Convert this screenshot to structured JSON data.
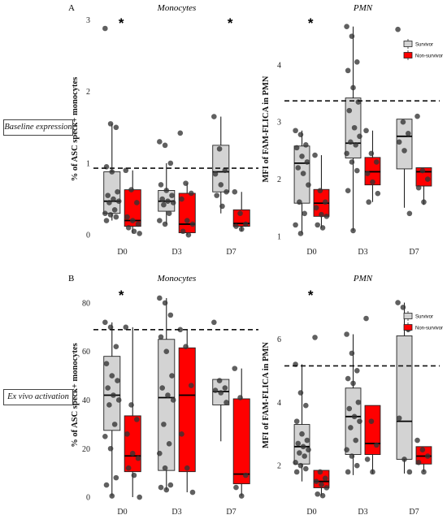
{
  "row_labels": {
    "baseline": "Baseline expression",
    "exvivo": "Ex vivo activation"
  },
  "legend": {
    "survivor": "Survivor",
    "nonsurvivor": "Non-survivor"
  },
  "colors": {
    "survivor": "#d3d3d3",
    "nonsurvivor": "#ff0000",
    "point": "#333333",
    "stroke": "#222222"
  },
  "significance_marker": "*",
  "chart_data": [
    {
      "panel": "A",
      "title": "Monocytes",
      "type": "box",
      "ylabel": "% of ASC speck+ monocytes",
      "xlabel": "",
      "categories": [
        "D0",
        "D3",
        "D7"
      ],
      "ylim": [
        -0.1,
        3.05
      ],
      "yticks": [
        0,
        1,
        2,
        3
      ],
      "ref_line": 0.93,
      "significance": [
        "D0",
        "D7"
      ],
      "legend": false,
      "groups": [
        {
          "cat": "D0",
          "series": "Survivor",
          "q1": 0.3,
          "median": 0.47,
          "q3": 0.88,
          "min": 0.2,
          "max": 1.55,
          "points": [
            2.88,
            1.55,
            1.5,
            0.95,
            0.88,
            0.6,
            0.55,
            0.5,
            0.47,
            0.45,
            0.35,
            0.3,
            0.28,
            0.25,
            0.2
          ]
        },
        {
          "cat": "D0",
          "series": "Non-survivor",
          "q1": 0.12,
          "median": 0.2,
          "q3": 0.63,
          "min": 0.02,
          "max": 0.9,
          "points": [
            0.9,
            0.63,
            0.45,
            0.25,
            0.2,
            0.15,
            0.1,
            0.05,
            0.02
          ]
        },
        {
          "cat": "D3",
          "series": "Survivor",
          "q1": 0.33,
          "median": 0.47,
          "q3": 0.62,
          "min": 0.15,
          "max": 1.0,
          "points": [
            1.3,
            1.25,
            1.0,
            0.7,
            0.62,
            0.55,
            0.5,
            0.47,
            0.45,
            0.42,
            0.3,
            0.2,
            0.15
          ]
        },
        {
          "cat": "D3",
          "series": "Non-survivor",
          "q1": 0.03,
          "median": 0.15,
          "q3": 0.58,
          "min": 0.0,
          "max": 0.72,
          "points": [
            1.42,
            0.72,
            0.58,
            0.5,
            0.2,
            0.15,
            0.05,
            0.0
          ]
        },
        {
          "cat": "D7",
          "series": "Survivor",
          "q1": 0.6,
          "median": 0.88,
          "q3": 1.25,
          "min": 0.3,
          "max": 1.65,
          "points": [
            1.65,
            1.2,
            0.9,
            0.85,
            0.7,
            0.6,
            0.55,
            0.4
          ]
        },
        {
          "cat": "D7",
          "series": "Non-survivor",
          "q1": 0.12,
          "median": 0.16,
          "q3": 0.35,
          "min": 0.05,
          "max": 0.6,
          "points": [
            0.6,
            0.3,
            0.15,
            0.12,
            0.08
          ]
        }
      ]
    },
    {
      "panel": "",
      "title": "PMN",
      "type": "box",
      "ylabel": "MFI of FAM-FLICA in PMN",
      "xlabel": "",
      "categories": [
        "D0",
        "D3",
        "D7"
      ],
      "ylim": [
        0.9,
        4.85
      ],
      "yticks": [
        1,
        2,
        3,
        4
      ],
      "ref_line": 3.37,
      "significance": [
        "D0"
      ],
      "legend": true,
      "groups": [
        {
          "cat": "D0",
          "series": "Survivor",
          "q1": 1.58,
          "median": 2.28,
          "q3": 2.58,
          "min": 1.05,
          "max": 2.85,
          "points": [
            2.85,
            2.78,
            2.6,
            2.55,
            2.4,
            2.3,
            2.2,
            2.1,
            1.9,
            1.6,
            1.4,
            1.2,
            1.05
          ]
        },
        {
          "cat": "D0",
          "series": "Non-survivor",
          "q1": 1.35,
          "median": 1.58,
          "q3": 1.82,
          "min": 1.15,
          "max": 2.42,
          "points": [
            2.42,
            1.8,
            1.6,
            1.5,
            1.38,
            1.35,
            1.2,
            1.15
          ]
        },
        {
          "cat": "D3",
          "series": "Survivor",
          "q1": 2.37,
          "median": 2.63,
          "q3": 3.42,
          "min": 1.1,
          "max": 4.67,
          "points": [
            4.67,
            4.5,
            4.05,
            3.9,
            3.6,
            3.35,
            3.2,
            2.9,
            2.75,
            2.65,
            2.6,
            2.45,
            2.3,
            2.15,
            1.8,
            1.1
          ]
        },
        {
          "cat": "D3",
          "series": "Non-survivor",
          "q1": 1.9,
          "median": 2.13,
          "q3": 2.38,
          "min": 1.6,
          "max": 2.85,
          "points": [
            2.85,
            2.45,
            2.3,
            2.1,
            1.95,
            1.75,
            1.6
          ]
        },
        {
          "cat": "D7",
          "series": "Survivor",
          "q1": 2.18,
          "median": 2.75,
          "q3": 3.05,
          "min": 1.5,
          "max": 3.05,
          "points": [
            4.62,
            3.0,
            2.8,
            2.65,
            2.5,
            1.4
          ]
        },
        {
          "cat": "D7",
          "series": "Non-survivor",
          "q1": 1.88,
          "median": 2.13,
          "q3": 2.2,
          "min": 1.55,
          "max": 2.2,
          "points": [
            3.1,
            2.15,
            2.0,
            1.85,
            1.6
          ]
        }
      ]
    },
    {
      "panel": "B",
      "title": "Monocytes",
      "type": "box",
      "ylabel": "% of ASC speck+ monocytes",
      "xlabel": "",
      "categories": [
        "D0",
        "D3",
        "D7"
      ],
      "ylim": [
        -2,
        86
      ],
      "yticks": [
        0,
        20,
        40,
        60,
        80
      ],
      "ref_line": 69,
      "significance": [
        "D0"
      ],
      "legend": false,
      "groups": [
        {
          "cat": "D0",
          "series": "Survivor",
          "q1": 27.5,
          "median": 42,
          "q3": 58,
          "min": 0.5,
          "max": 72,
          "points": [
            72,
            70,
            62,
            55,
            50,
            48,
            45,
            42,
            40,
            38,
            30,
            25,
            20,
            8,
            5,
            0.5
          ]
        },
        {
          "cat": "D0",
          "series": "Non-survivor",
          "q1": 10.5,
          "median": 17,
          "q3": 33.5,
          "min": 0,
          "max": 70,
          "points": [
            70,
            38,
            32,
            26,
            18,
            16,
            12,
            9,
            0
          ]
        },
        {
          "cat": "D3",
          "series": "Survivor",
          "q1": 11,
          "median": 41,
          "q3": 65,
          "min": 3,
          "max": 82,
          "points": [
            82,
            80,
            75,
            66,
            60,
            50,
            45,
            42,
            40,
            30,
            22,
            18,
            12,
            5,
            4,
            3
          ]
        },
        {
          "cat": "D3",
          "series": "Non-survivor",
          "q1": 10.5,
          "median": 42,
          "q3": 61.5,
          "min": 2,
          "max": 69,
          "points": [
            69,
            62,
            46,
            26,
            12,
            2
          ]
        },
        {
          "cat": "D7",
          "series": "Survivor",
          "q1": 38,
          "median": 43.5,
          "q3": 48.5,
          "min": 23,
          "max": 48.5,
          "points": [
            72,
            48,
            45,
            44,
            43,
            39
          ]
        },
        {
          "cat": "D7",
          "series": "Non-survivor",
          "q1": 5.5,
          "median": 9.5,
          "q3": 40.5,
          "min": 0.5,
          "max": 53,
          "points": [
            53,
            41,
            9,
            4,
            0.5
          ]
        }
      ]
    },
    {
      "panel": "",
      "title": "PMN",
      "type": "box",
      "ylabel": "MFI of FAM-FLICA in PMN",
      "xlabel": "",
      "categories": [
        "D0",
        "D3",
        "D7"
      ],
      "ylim": [
        0.85,
        7.6
      ],
      "yticks": [
        2,
        4,
        6
      ],
      "ref_line": 5.15,
      "significance": [
        "D0"
      ],
      "legend": true,
      "groups": [
        {
          "cat": "D0",
          "series": "Survivor",
          "q1": 2.05,
          "median": 2.6,
          "q3": 3.3,
          "min": 1.5,
          "max": 5.2,
          "points": [
            5.2,
            4.3,
            3.9,
            3.4,
            3.0,
            2.8,
            2.7,
            2.6,
            2.5,
            2.4,
            2.3,
            2.1,
            2.0,
            1.9,
            1.8
          ]
        },
        {
          "cat": "D0",
          "series": "Non-survivor",
          "q1": 1.3,
          "median": 1.5,
          "q3": 1.85,
          "min": 1.05,
          "max": 1.85,
          "points": [
            6.05,
            1.8,
            1.6,
            1.5,
            1.4,
            1.3,
            1.1,
            1.05
          ]
        },
        {
          "cat": "D3",
          "series": "Survivor",
          "q1": 2.35,
          "median": 3.55,
          "q3": 4.45,
          "min": 1.7,
          "max": 6.15,
          "points": [
            6.15,
            5.55,
            5.0,
            4.75,
            4.6,
            4.0,
            3.8,
            3.55,
            3.4,
            3.2,
            2.8,
            2.5,
            2.3,
            2.0,
            1.8
          ]
        },
        {
          "cat": "D3",
          "series": "Non-survivor",
          "q1": 2.35,
          "median": 2.7,
          "q3": 3.9,
          "min": 1.75,
          "max": 3.9,
          "points": [
            6.65,
            3.4,
            2.65,
            2.2,
            1.8
          ]
        },
        {
          "cat": "D7",
          "series": "Survivor",
          "q1": 2.2,
          "median": 3.4,
          "q3": 6.1,
          "min": 1.75,
          "max": 7.15,
          "points": [
            7.15,
            7.0,
            6.3,
            3.5,
            2.2,
            1.8
          ]
        },
        {
          "cat": "D7",
          "series": "Non-survivor",
          "q1": 2.05,
          "median": 2.3,
          "q3": 2.6,
          "min": 1.8,
          "max": 2.6,
          "points": [
            2.8,
            2.5,
            2.3,
            2.1,
            1.8
          ]
        }
      ]
    }
  ]
}
